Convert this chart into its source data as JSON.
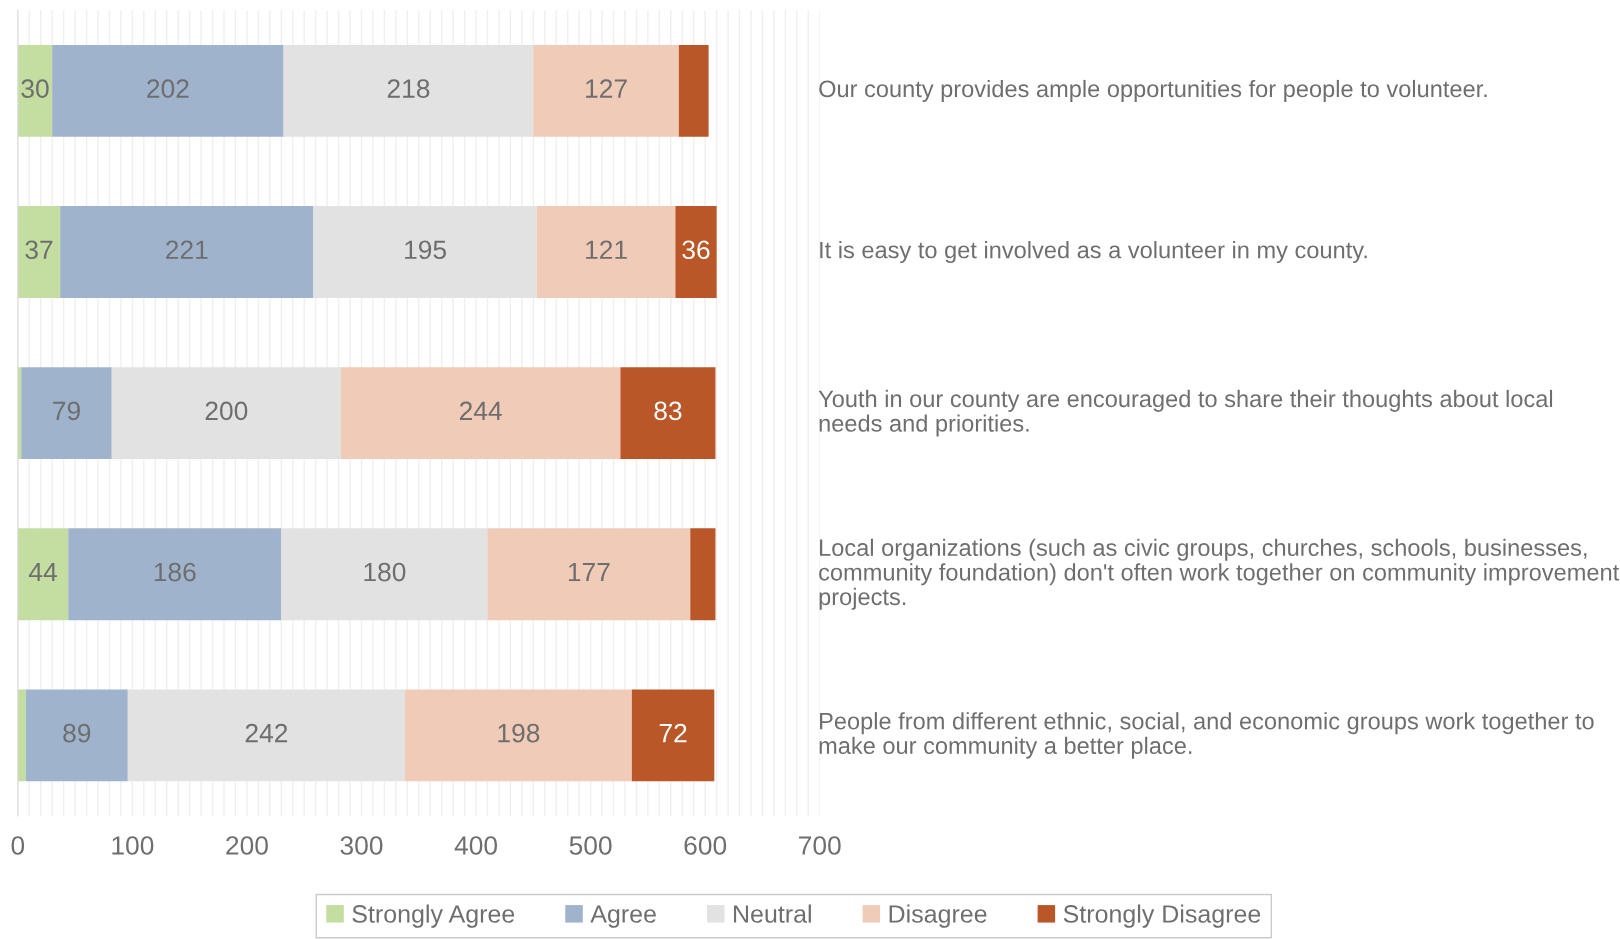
{
  "chart_data": {
    "type": "bar",
    "orientation": "horizontal",
    "stacked": true,
    "categories": [
      "Our county provides ample opportunities for people to volunteer.",
      "It is easy to get involved as a volunteer in my county.",
      "Youth in our county are encouraged to share their thoughts about local needs and priorities.",
      "Local organizations (such as civic groups, churches, schools, businesses, community foundation) don't often work together on community improvement projects.",
      "People from different ethnic, social, and economic groups work together to make our community a better place."
    ],
    "series": [
      {
        "name": "Strongly Agree",
        "color": "#c3dea0",
        "values": [
          30,
          37,
          3,
          44,
          7
        ],
        "value_labels": [
          "30",
          "37",
          null,
          "44",
          null
        ]
      },
      {
        "name": "Agree",
        "color": "#9fb3cc",
        "values": [
          202,
          221,
          79,
          186,
          89
        ],
        "value_labels": [
          "202",
          "221",
          "79",
          "186",
          "89"
        ]
      },
      {
        "name": "Neutral",
        "color": "#e2e2e2",
        "values": [
          218,
          195,
          200,
          180,
          242
        ],
        "value_labels": [
          "218",
          "195",
          "200",
          "180",
          "242"
        ]
      },
      {
        "name": "Disagree",
        "color": "#f0cbb8",
        "values": [
          127,
          121,
          244,
          177,
          198
        ],
        "value_labels": [
          "127",
          "121",
          "244",
          "177",
          "198"
        ]
      },
      {
        "name": "Strongly Disagree",
        "color": "#b95728",
        "values": [
          26,
          36,
          83,
          22,
          72
        ],
        "value_labels": [
          null,
          "36",
          "83",
          null,
          "72"
        ]
      }
    ],
    "xlim": [
      0,
      700
    ],
    "xticks": [
      0,
      {
        "value": 10,
        "label": null
      },
      {
        "value": 20,
        "label": null
      },
      {
        "value": 30,
        "label": null
      },
      {
        "value": 40,
        "label": null
      },
      {
        "value": 50,
        "label": null
      },
      {
        "value": 60,
        "label": null
      },
      {
        "value": 70,
        "label": null
      },
      {
        "value": 80,
        "label": null
      },
      {
        "value": 90,
        "label": null
      },
      100,
      {
        "value": 110,
        "label": null
      },
      {
        "value": 120,
        "label": null
      },
      {
        "value": 130,
        "label": null
      },
      {
        "value": 140,
        "label": null
      },
      {
        "value": 150,
        "label": null
      },
      {
        "value": 160,
        "label": null
      },
      {
        "value": 170,
        "label": null
      },
      {
        "value": 180,
        "label": null
      },
      {
        "value": 190,
        "label": null
      },
      200,
      {
        "value": 210,
        "label": null
      },
      {
        "value": 220,
        "label": null
      },
      {
        "value": 230,
        "label": null
      },
      {
        "value": 240,
        "label": null
      },
      {
        "value": 250,
        "label": null
      },
      {
        "value": 260,
        "label": null
      },
      {
        "value": 270,
        "label": null
      },
      {
        "value": 280,
        "label": null
      },
      {
        "value": 290,
        "label": null
      },
      300,
      {
        "value": 310,
        "label": null
      },
      {
        "value": 320,
        "label": null
      },
      {
        "value": 330,
        "label": null
      },
      {
        "value": 340,
        "label": null
      },
      {
        "value": 350,
        "label": null
      },
      {
        "value": 360,
        "label": null
      },
      {
        "value": 370,
        "label": null
      },
      {
        "value": 380,
        "label": null
      },
      {
        "value": 390,
        "label": null
      },
      400,
      {
        "value": 410,
        "label": null
      },
      {
        "value": 420,
        "label": null
      },
      {
        "value": 430,
        "label": null
      },
      {
        "value": 440,
        "label": null
      },
      {
        "value": 450,
        "label": null
      },
      {
        "value": 460,
        "label": null
      },
      {
        "value": 470,
        "label": null
      },
      {
        "value": 480,
        "label": null
      },
      {
        "value": 490,
        "label": null
      },
      500,
      {
        "value": 510,
        "label": null
      },
      {
        "value": 520,
        "label": null
      },
      {
        "value": 530,
        "label": null
      },
      {
        "value": 540,
        "label": null
      },
      {
        "value": 550,
        "label": null
      },
      {
        "value": 560,
        "label": null
      },
      {
        "value": 570,
        "label": null
      },
      {
        "value": 580,
        "label": null
      },
      {
        "value": 590,
        "label": null
      },
      600,
      {
        "value": 610,
        "label": null
      },
      {
        "value": 620,
        "label": null
      },
      {
        "value": 630,
        "label": null
      },
      {
        "value": 640,
        "label": null
      },
      {
        "value": 650,
        "label": null
      },
      {
        "value": 660,
        "label": null
      },
      {
        "value": 670,
        "label": null
      },
      {
        "value": 680,
        "label": null
      },
      {
        "value": 690,
        "label": null
      },
      700
    ],
    "grid": "x",
    "legend": "bottom"
  }
}
